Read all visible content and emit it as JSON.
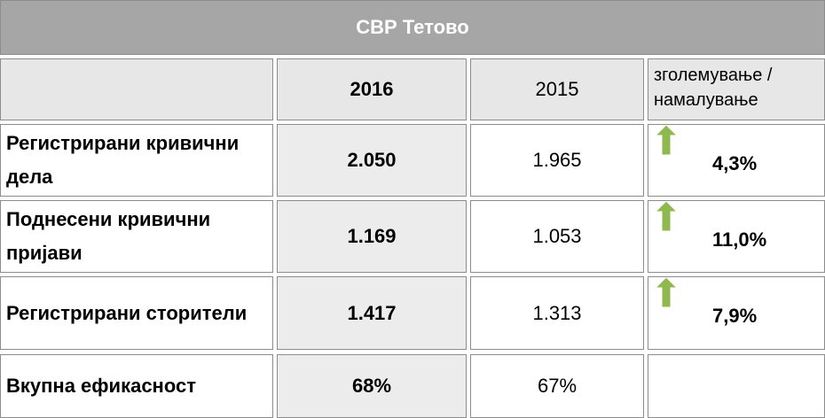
{
  "title": "СВР Тетово",
  "table": {
    "columns": [
      "2016",
      "2015",
      "зголемување /намалување"
    ],
    "rows": [
      [
        "Регистрирани кривични дела",
        "2.050",
        "1.965",
        "4,3%"
      ],
      [
        "Поднесени кривични пријави",
        "1.169",
        "1.053",
        "11,0%"
      ],
      [
        "Регистрирани сторители",
        "1.417",
        "1.313",
        "7,9%"
      ],
      [
        "Вкупна ефикасност",
        "68%",
        "67%"
      ]
    ]
  }
}
